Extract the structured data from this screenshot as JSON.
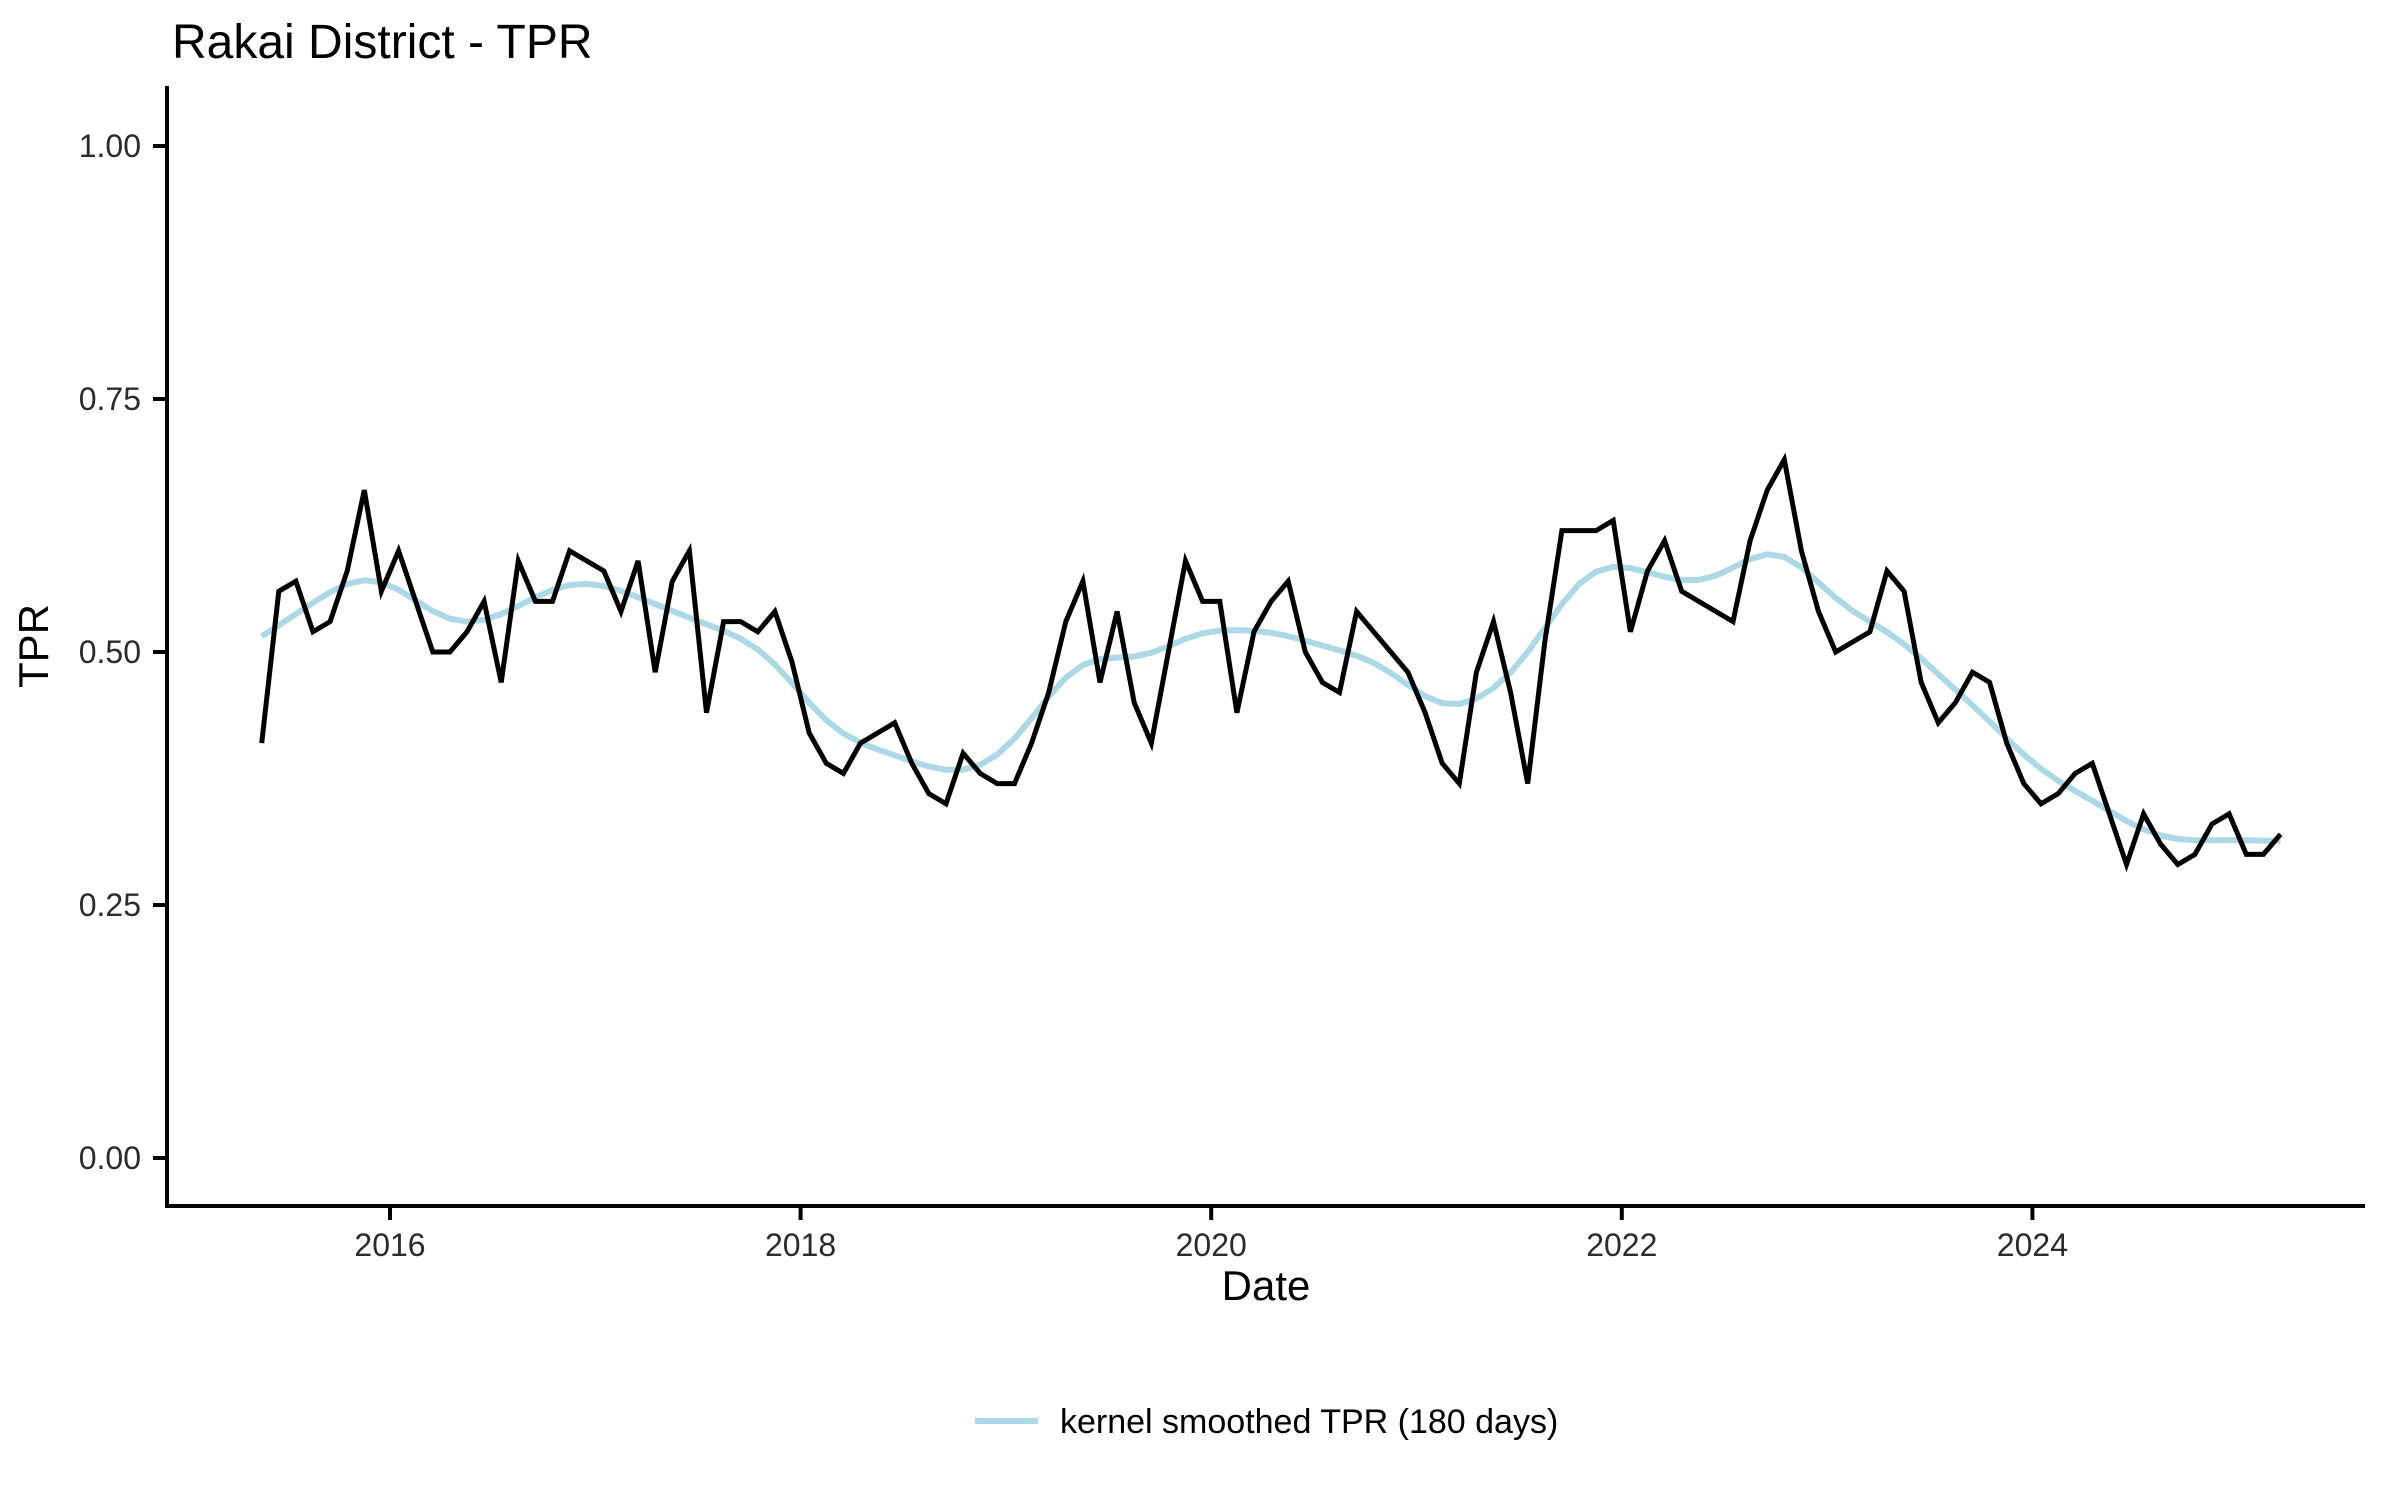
{
  "chart_data": {
    "type": "line",
    "title": "Rakai District - TPR",
    "xlabel": "Date",
    "ylabel": "TPR",
    "grid": false,
    "background": "#ffffff",
    "ylim": [
      0.0,
      1.0
    ],
    "xlim_years": [
      2015.1,
      2025.6
    ],
    "legend_position": "bottom-center",
    "y_ticks": [
      {
        "value": 0.0,
        "label": "0.00"
      },
      {
        "value": 0.25,
        "label": "0.25"
      },
      {
        "value": 0.5,
        "label": "0.50"
      },
      {
        "value": 0.75,
        "label": "0.75"
      },
      {
        "value": 1.0,
        "label": "1.00"
      }
    ],
    "x_ticks": [
      {
        "year": 2016,
        "label": "2016"
      },
      {
        "year": 2018,
        "label": "2018"
      },
      {
        "year": 2020,
        "label": "2020"
      },
      {
        "year": 2022,
        "label": "2022"
      },
      {
        "year": 2024,
        "label": "2024"
      }
    ],
    "series": [
      {
        "name": "TPR",
        "type": "line",
        "color": "#000000",
        "start_month": "2015-05",
        "end_month": "2025-03",
        "frequency": "monthly",
        "values": [
          0.41,
          0.56,
          0.57,
          0.52,
          0.53,
          0.58,
          0.66,
          0.56,
          0.6,
          0.55,
          0.5,
          0.5,
          0.52,
          0.55,
          0.47,
          0.59,
          0.55,
          0.55,
          0.6,
          0.59,
          0.58,
          0.54,
          0.59,
          0.48,
          0.57,
          0.6,
          0.44,
          0.53,
          0.53,
          0.52,
          0.54,
          0.49,
          0.42,
          0.39,
          0.38,
          0.41,
          0.42,
          0.43,
          0.39,
          0.36,
          0.35,
          0.4,
          0.38,
          0.37,
          0.37,
          0.41,
          0.46,
          0.53,
          0.57,
          0.47,
          0.54,
          0.45,
          0.41,
          0.5,
          0.59,
          0.55,
          0.55,
          0.44,
          0.52,
          0.55,
          0.57,
          0.5,
          0.47,
          0.46,
          0.54,
          0.52,
          0.5,
          0.48,
          0.44,
          0.39,
          0.37,
          0.48,
          0.53,
          0.46,
          0.37,
          0.51,
          0.62,
          0.62,
          0.62,
          0.63,
          0.52,
          0.58,
          0.61,
          0.56,
          0.55,
          0.54,
          0.53,
          0.61,
          0.66,
          0.69,
          0.6,
          0.54,
          0.5,
          0.51,
          0.52,
          0.58,
          0.56,
          0.47,
          0.43,
          0.45,
          0.48,
          0.47,
          0.41,
          0.37,
          0.35,
          0.36,
          0.38,
          0.39,
          0.34,
          0.29,
          0.34,
          0.31,
          0.29,
          0.3,
          0.33,
          0.34,
          0.3,
          0.3,
          0.32
        ]
      },
      {
        "name": "kernel smoothed TPR (180 days)",
        "type": "line",
        "color": "#ADD8E6",
        "derived_from": "TPR",
        "smoothing": {
          "kernel": "gaussian",
          "window_days": 180,
          "sigma_months": 2.5
        }
      }
    ]
  }
}
